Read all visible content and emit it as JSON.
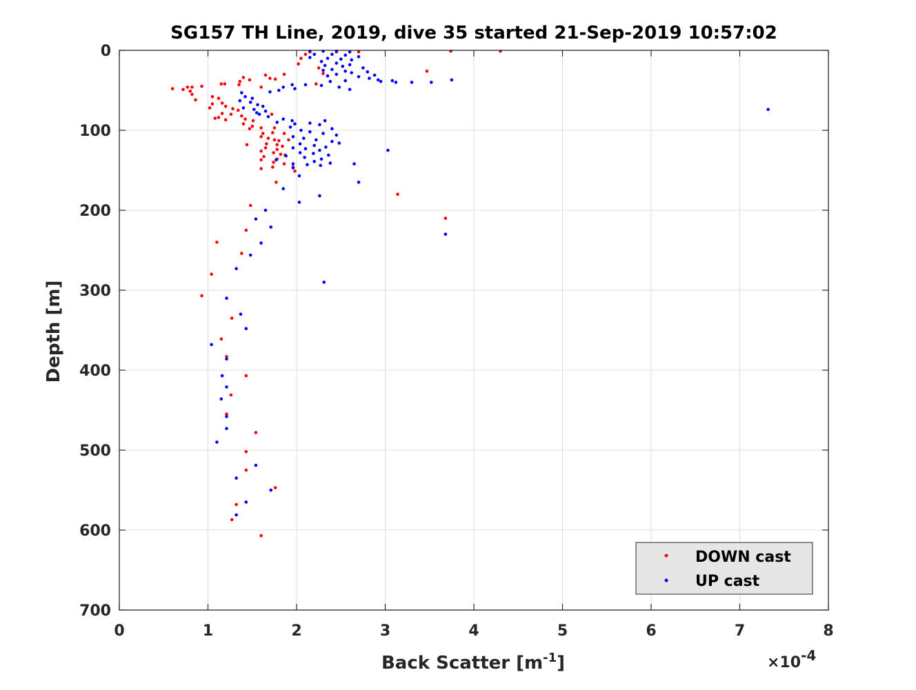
{
  "chart_data": {
    "type": "scatter",
    "title": "SG157 TH Line, 2019, dive 35 started 21-Sep-2019 10:57:02",
    "xlabel_main": "Back Scatter [m",
    "xlabel_sup": "-1",
    "xlabel_end": "]",
    "ylabel": "Depth [m]",
    "exponent_prefix": "×10",
    "exponent_sup": "-4",
    "xlim": [
      0,
      8
    ],
    "ylim": [
      0,
      700
    ],
    "y_reversed": true,
    "grid": true,
    "x_ticks": [
      0,
      1,
      2,
      3,
      4,
      5,
      6,
      7,
      8
    ],
    "y_ticks": [
      0,
      100,
      200,
      300,
      400,
      500,
      600,
      700
    ],
    "legend_position": "bottom-right",
    "series": [
      {
        "name": "DOWN cast",
        "color": "#ff0000",
        "points": [
          [
            3.74,
            1
          ],
          [
            4.3,
            1
          ],
          [
            2.15,
            2
          ],
          [
            2.45,
            2
          ],
          [
            2.7,
            2
          ],
          [
            2.1,
            5
          ],
          [
            2.05,
            10
          ],
          [
            2.02,
            17
          ],
          [
            2.25,
            22
          ],
          [
            3.47,
            26
          ],
          [
            2.3,
            29
          ],
          [
            1.86,
            30
          ],
          [
            1.65,
            31
          ],
          [
            1.4,
            34
          ],
          [
            1.7,
            35
          ],
          [
            1.76,
            36
          ],
          [
            1.47,
            37
          ],
          [
            1.36,
            39
          ],
          [
            1.15,
            42
          ],
          [
            1.19,
            42
          ],
          [
            2.22,
            42
          ],
          [
            1.35,
            43
          ],
          [
            0.93,
            45
          ],
          [
            0.77,
            46
          ],
          [
            0.82,
            46
          ],
          [
            1.6,
            46
          ],
          [
            0.6,
            48
          ],
          [
            0.72,
            49
          ],
          [
            0.8,
            51
          ],
          [
            0.82,
            55
          ],
          [
            0.86,
            62
          ],
          [
            1.05,
            58
          ],
          [
            1.12,
            60
          ],
          [
            1.16,
            66
          ],
          [
            1.05,
            67
          ],
          [
            1.2,
            70
          ],
          [
            1.02,
            72
          ],
          [
            1.28,
            73
          ],
          [
            1.34,
            75
          ],
          [
            1.16,
            79
          ],
          [
            1.26,
            80
          ],
          [
            1.38,
            82
          ],
          [
            1.12,
            84
          ],
          [
            1.2,
            87
          ],
          [
            1.08,
            85
          ],
          [
            1.42,
            86
          ],
          [
            1.51,
            88
          ],
          [
            1.72,
            80
          ],
          [
            1.4,
            92
          ],
          [
            1.5,
            95
          ],
          [
            1.47,
            98
          ],
          [
            1.6,
            97
          ],
          [
            1.75,
            97
          ],
          [
            1.73,
            103
          ],
          [
            1.62,
            104
          ],
          [
            1.86,
            104
          ],
          [
            1.6,
            108
          ],
          [
            1.68,
            110
          ],
          [
            1.75,
            112
          ],
          [
            1.8,
            113
          ],
          [
            1.91,
            112
          ],
          [
            1.66,
            117
          ],
          [
            1.78,
            118
          ],
          [
            1.84,
            120
          ],
          [
            1.44,
            118
          ],
          [
            1.65,
            122
          ],
          [
            1.78,
            124
          ],
          [
            1.6,
            126
          ],
          [
            1.74,
            128
          ],
          [
            1.82,
            130
          ],
          [
            1.87,
            131
          ],
          [
            1.63,
            133
          ],
          [
            1.78,
            136
          ],
          [
            1.6,
            137
          ],
          [
            1.74,
            140
          ],
          [
            1.86,
            142
          ],
          [
            1.73,
            146
          ],
          [
            1.96,
            146
          ],
          [
            1.6,
            148
          ],
          [
            1.98,
            151
          ],
          [
            1.77,
            165
          ],
          [
            3.14,
            180
          ],
          [
            1.48,
            194
          ],
          [
            3.68,
            210
          ],
          [
            1.43,
            225
          ],
          [
            1.1,
            240
          ],
          [
            1.38,
            254
          ],
          [
            1.04,
            280
          ],
          [
            0.93,
            307
          ],
          [
            1.27,
            335
          ],
          [
            1.15,
            361
          ],
          [
            1.21,
            383
          ],
          [
            1.43,
            407
          ],
          [
            1.26,
            431
          ],
          [
            1.21,
            455
          ],
          [
            1.54,
            478
          ],
          [
            1.43,
            502
          ],
          [
            1.43,
            525
          ],
          [
            1.76,
            547
          ],
          [
            1.32,
            568
          ],
          [
            1.27,
            587
          ],
          [
            1.6,
            607
          ]
        ]
      },
      {
        "name": "UP cast",
        "color": "#0000ff",
        "points": [
          [
            2.15,
            1
          ],
          [
            2.3,
            1
          ],
          [
            2.45,
            1
          ],
          [
            2.6,
            2
          ],
          [
            2.2,
            5
          ],
          [
            2.4,
            5
          ],
          [
            2.55,
            6
          ],
          [
            2.7,
            8
          ],
          [
            2.15,
            9
          ],
          [
            2.35,
            10
          ],
          [
            2.5,
            11
          ],
          [
            2.62,
            12
          ],
          [
            2.28,
            14
          ],
          [
            2.45,
            16
          ],
          [
            2.6,
            18
          ],
          [
            2.32,
            19
          ],
          [
            2.52,
            20
          ],
          [
            2.75,
            22
          ],
          [
            2.4,
            24
          ],
          [
            2.3,
            25
          ],
          [
            2.55,
            26
          ],
          [
            2.8,
            27
          ],
          [
            2.62,
            28
          ],
          [
            2.45,
            30
          ],
          [
            2.88,
            31
          ],
          [
            2.35,
            32
          ],
          [
            2.7,
            33
          ],
          [
            2.82,
            35
          ],
          [
            2.92,
            37
          ],
          [
            3.08,
            38
          ],
          [
            3.75,
            37
          ],
          [
            2.55,
            38
          ],
          [
            2.38,
            39
          ],
          [
            2.95,
            39
          ],
          [
            3.12,
            40
          ],
          [
            3.3,
            40
          ],
          [
            3.52,
            40
          ],
          [
            2.1,
            43
          ],
          [
            2.28,
            44
          ],
          [
            2.48,
            46
          ],
          [
            2.6,
            49
          ],
          [
            1.95,
            43
          ],
          [
            1.85,
            46
          ],
          [
            1.98,
            48
          ],
          [
            1.8,
            50
          ],
          [
            1.7,
            52
          ],
          [
            1.38,
            53
          ],
          [
            1.42,
            58
          ],
          [
            1.5,
            60
          ],
          [
            1.36,
            63
          ],
          [
            1.48,
            65
          ],
          [
            1.56,
            68
          ],
          [
            1.62,
            70
          ],
          [
            1.4,
            72
          ],
          [
            1.52,
            74
          ],
          [
            1.65,
            76
          ],
          [
            1.55,
            78
          ],
          [
            1.58,
            80
          ],
          [
            1.68,
            83
          ],
          [
            1.85,
            86
          ],
          [
            1.95,
            88
          ],
          [
            2.32,
            88
          ],
          [
            1.78,
            90
          ],
          [
            1.98,
            92
          ],
          [
            2.15,
            91
          ],
          [
            2.26,
            93
          ],
          [
            1.93,
            96
          ],
          [
            2.4,
            98
          ],
          [
            2.05,
            100
          ],
          [
            2.15,
            102
          ],
          [
            2.3,
            104
          ],
          [
            2.45,
            106
          ],
          [
            1.96,
            108
          ],
          [
            2.08,
            110
          ],
          [
            2.22,
            112
          ],
          [
            2.4,
            114
          ],
          [
            2.48,
            116
          ],
          [
            2.04,
            117
          ],
          [
            2.2,
            119
          ],
          [
            2.33,
            121
          ],
          [
            1.96,
            122
          ],
          [
            2.1,
            123
          ],
          [
            2.26,
            125
          ],
          [
            3.03,
            125
          ],
          [
            2.04,
            128
          ],
          [
            2.19,
            129
          ],
          [
            2.36,
            131
          ],
          [
            1.88,
            132
          ],
          [
            2.09,
            134
          ],
          [
            2.28,
            136
          ],
          [
            1.77,
            137
          ],
          [
            2.2,
            139
          ],
          [
            2.38,
            141
          ],
          [
            1.96,
            142
          ],
          [
            2.12,
            143
          ],
          [
            2.65,
            142
          ],
          [
            2.27,
            144
          ],
          [
            1.96,
            147
          ],
          [
            2.03,
            157
          ],
          [
            2.7,
            165
          ],
          [
            1.85,
            173
          ],
          [
            2.26,
            182
          ],
          [
            2.03,
            190
          ],
          [
            1.65,
            200
          ],
          [
            1.54,
            211
          ],
          [
            1.71,
            221
          ],
          [
            3.68,
            230
          ],
          [
            1.6,
            241
          ],
          [
            1.48,
            256
          ],
          [
            1.32,
            273
          ],
          [
            2.31,
            290
          ],
          [
            1.21,
            310
          ],
          [
            1.37,
            330
          ],
          [
            1.43,
            348
          ],
          [
            1.04,
            368
          ],
          [
            1.21,
            386
          ],
          [
            1.16,
            407
          ],
          [
            1.21,
            421
          ],
          [
            1.15,
            436
          ],
          [
            1.21,
            458
          ],
          [
            1.21,
            473
          ],
          [
            1.1,
            490
          ],
          [
            1.54,
            519
          ],
          [
            1.32,
            535
          ],
          [
            1.71,
            550
          ],
          [
            1.43,
            565
          ],
          [
            1.32,
            581
          ],
          [
            7.32,
            74
          ]
        ]
      }
    ]
  },
  "legend": {
    "down_label": "DOWN cast",
    "up_label": "UP cast"
  }
}
